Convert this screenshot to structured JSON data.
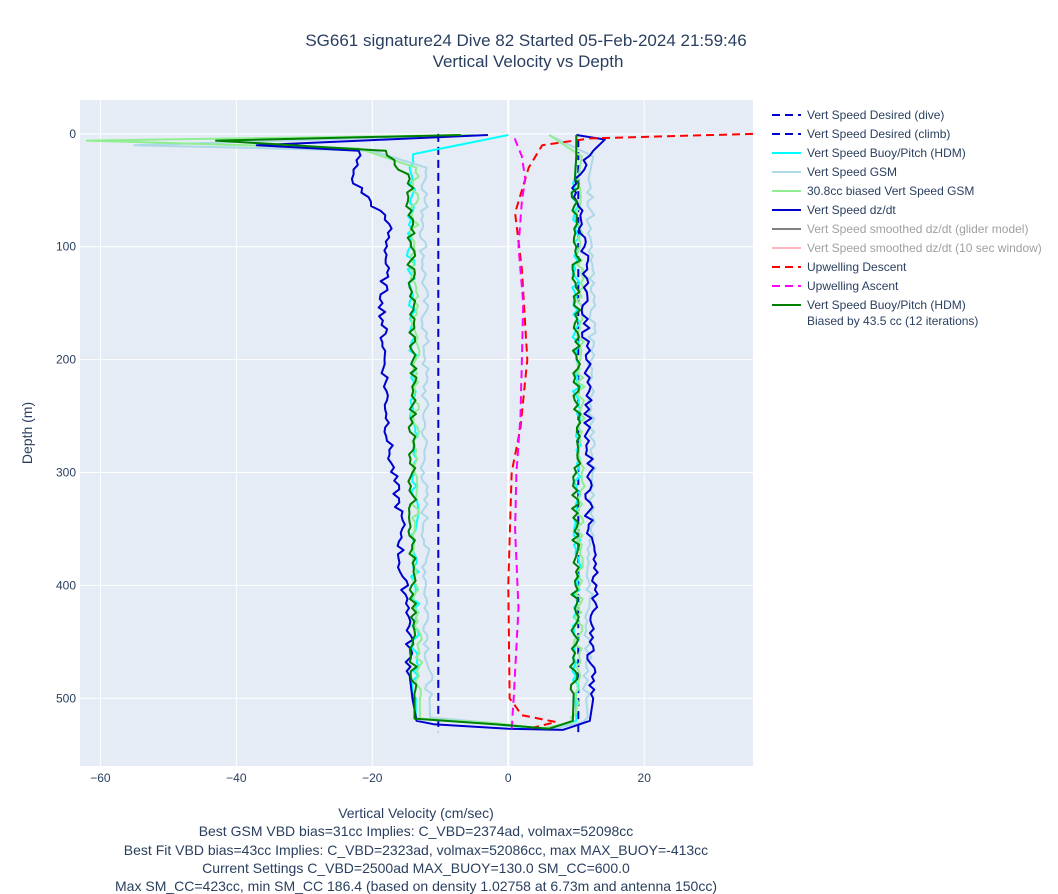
{
  "chart_data": {
    "type": "line",
    "title": "SG661 signature24 Dive 82 Started 05-Feb-2024 21:59:46",
    "subtitle": "Vertical Velocity vs Depth",
    "xlabel": "Vertical Velocity (cm/sec)",
    "xlabel_notes": [
      "Best GSM VBD bias=31cc Implies: C_VBD=2374ad, volmax=52098cc",
      "Best Fit VBD bias=43cc Implies: C_VBD=2323ad, volmax=52086cc, max MAX_BUOY=-413cc",
      "Current Settings C_VBD=2500ad MAX_BUOY=130.0 SM_CC=600.0",
      "Max SM_CC=423cc, min SM_CC 186.4 (based on density 1.02758 at 6.73m and antenna 150cc)"
    ],
    "ylabel": "Depth (m)",
    "xlim": [
      -63,
      36
    ],
    "ylim": [
      560,
      -30
    ],
    "y_reversed": true,
    "grid": true,
    "legend_position": "right",
    "x_ticks": [
      "−60",
      "−40",
      "−20",
      "0",
      "20"
    ],
    "y_ticks": [
      "0",
      "100",
      "200",
      "300",
      "400",
      "500"
    ],
    "colors": {
      "plot_bg": "#e5ecf6",
      "grid": "#ffffff"
    },
    "series": [
      {
        "name": "Vert Speed Desired (dive)",
        "color": "#0000cd",
        "dash": "dash",
        "dim": false,
        "points": [
          [
            -10.3,
            0
          ],
          [
            -10.3,
            530
          ]
        ]
      },
      {
        "name": "Vert Speed Desired (climb)",
        "color": "#0000cd",
        "dash": "dash",
        "dim": false,
        "points": [
          [
            10.3,
            530
          ],
          [
            10.3,
            0
          ]
        ]
      },
      {
        "name": "Vert Speed Buoy/Pitch (HDM)",
        "color": "#00ffff",
        "dash": "solid",
        "dim": false,
        "points": [
          [
            0,
            1
          ],
          [
            -14,
            18
          ],
          [
            -14.4,
            100
          ],
          [
            -14,
            200
          ],
          [
            -13.8,
            300
          ],
          [
            -13.7,
            400
          ],
          [
            -13.6,
            500
          ],
          [
            -13.6,
            518
          ],
          [
            -2,
            523
          ],
          [
            6,
            528
          ],
          [
            10,
            520
          ],
          [
            9.9,
            500
          ],
          [
            10.2,
            400
          ],
          [
            10.1,
            300
          ],
          [
            10,
            200
          ],
          [
            10,
            100
          ],
          [
            9.8,
            40
          ],
          [
            10,
            20
          ],
          [
            10,
            1
          ]
        ]
      },
      {
        "name": "Vert Speed GSM",
        "color": "#add8e6",
        "dash": "solid",
        "dim": false,
        "points": [
          [
            -6,
            1
          ],
          [
            -55,
            10
          ],
          [
            -20,
            15
          ],
          [
            -12,
            30
          ],
          [
            -12.5,
            80
          ],
          [
            -12.2,
            200
          ],
          [
            -12.4,
            300
          ],
          [
            -12.1,
            400
          ],
          [
            -11.6,
            500
          ],
          [
            -11.5,
            517
          ],
          [
            -2,
            522
          ],
          [
            6,
            528
          ],
          [
            11,
            521
          ],
          [
            11.5,
            500
          ],
          [
            12,
            400
          ],
          [
            12.4,
            300
          ],
          [
            12.3,
            200
          ],
          [
            12.3,
            100
          ],
          [
            11.8,
            40
          ],
          [
            12.5,
            20
          ],
          [
            6,
            1
          ]
        ]
      },
      {
        "name": "30.8cc biased Vert Speed GSM",
        "color": "#90ee90",
        "dash": "solid",
        "dim": false,
        "points": [
          [
            -5,
            1
          ],
          [
            -62,
            6
          ],
          [
            -22,
            13
          ],
          [
            -13.5,
            30
          ],
          [
            -13.9,
            100
          ],
          [
            -13.6,
            200
          ],
          [
            -13.8,
            300
          ],
          [
            -13.5,
            400
          ],
          [
            -13,
            500
          ],
          [
            -13,
            518
          ],
          [
            -2,
            522
          ],
          [
            5,
            527
          ],
          [
            9.5,
            521
          ],
          [
            10,
            500
          ],
          [
            10.5,
            400
          ],
          [
            10.8,
            300
          ],
          [
            10.6,
            200
          ],
          [
            10.5,
            100
          ],
          [
            10.3,
            40
          ],
          [
            10.8,
            20
          ],
          [
            6,
            1
          ]
        ]
      },
      {
        "name": "Vert Speed dz/dt",
        "color": "#0000cd",
        "dash": "solid",
        "dim": false,
        "points": [
          [
            -3,
            1
          ],
          [
            -37,
            10
          ],
          [
            -22,
            15
          ],
          [
            -23,
            40
          ],
          [
            -17.5,
            80
          ],
          [
            -18.5,
            150
          ],
          [
            -18.2,
            200
          ],
          [
            -17.5,
            280
          ],
          [
            -15.6,
            350
          ],
          [
            -16,
            380
          ],
          [
            -14.6,
            420
          ],
          [
            -14.5,
            480
          ],
          [
            -14.1,
            500
          ],
          [
            -13.5,
            520
          ],
          [
            -11,
            523
          ],
          [
            0,
            527
          ],
          [
            8,
            528
          ],
          [
            12,
            520
          ],
          [
            12.5,
            500
          ],
          [
            12,
            450
          ],
          [
            13,
            400
          ],
          [
            11.8,
            350
          ],
          [
            12,
            300
          ],
          [
            11.5,
            200
          ],
          [
            11.2,
            100
          ],
          [
            9.8,
            40
          ],
          [
            12.5,
            15
          ],
          [
            14.2,
            5
          ],
          [
            10,
            1
          ]
        ]
      },
      {
        "name": "Vert Speed smoothed dz/dt (glider model)",
        "color": "#808080",
        "dash": "solid",
        "dim": true,
        "points": []
      },
      {
        "name": "Vert Speed smoothed dz/dt (10 sec window)",
        "color": "#ffb6c1",
        "dash": "solid",
        "dim": true,
        "points": []
      },
      {
        "name": "Upwelling Descent",
        "color": "#ff0000",
        "dash": "dash",
        "dim": false,
        "points": [
          [
            36,
            0
          ],
          [
            30,
            1
          ],
          [
            12,
            4
          ],
          [
            5,
            10
          ],
          [
            3,
            30
          ],
          [
            1,
            70
          ],
          [
            2,
            120
          ],
          [
            2.8,
            200
          ],
          [
            1.8,
            260
          ],
          [
            0.5,
            300
          ],
          [
            0,
            400
          ],
          [
            0.2,
            500
          ],
          [
            2,
            515
          ],
          [
            7,
            521
          ],
          [
            3,
            527
          ]
        ]
      },
      {
        "name": "Upwelling Ascent",
        "color": "#ff00ff",
        "dash": "dash",
        "dim": false,
        "points": [
          [
            0.5,
            527
          ],
          [
            0.8,
            500
          ],
          [
            1.5,
            420
          ],
          [
            1,
            350
          ],
          [
            1.2,
            300
          ],
          [
            1.8,
            250
          ],
          [
            2,
            200
          ],
          [
            2.2,
            150
          ],
          [
            1.5,
            100
          ],
          [
            2,
            60
          ],
          [
            2.5,
            40
          ],
          [
            2,
            20
          ],
          [
            1,
            5
          ],
          [
            1,
            1
          ]
        ]
      },
      {
        "name": "Vert Speed Buoy/Pitch (HDM)",
        "name_line2": "Biased by 43.5 cc (12 iterations)",
        "color": "#008000",
        "dash": "solid",
        "dim": false,
        "points": [
          [
            -7,
            1
          ],
          [
            -43,
            6
          ],
          [
            -18,
            15
          ],
          [
            -14.5,
            40
          ],
          [
            -14.3,
            100
          ],
          [
            -14,
            200
          ],
          [
            -14.1,
            300
          ],
          [
            -14.2,
            400
          ],
          [
            -13.8,
            500
          ],
          [
            -13.8,
            518
          ],
          [
            -2,
            523
          ],
          [
            6,
            527
          ],
          [
            9.5,
            520
          ],
          [
            9.6,
            500
          ],
          [
            9.9,
            400
          ],
          [
            10,
            300
          ],
          [
            10.1,
            200
          ],
          [
            10,
            100
          ],
          [
            9.8,
            40
          ],
          [
            10,
            20
          ],
          [
            10,
            1
          ]
        ]
      }
    ]
  }
}
